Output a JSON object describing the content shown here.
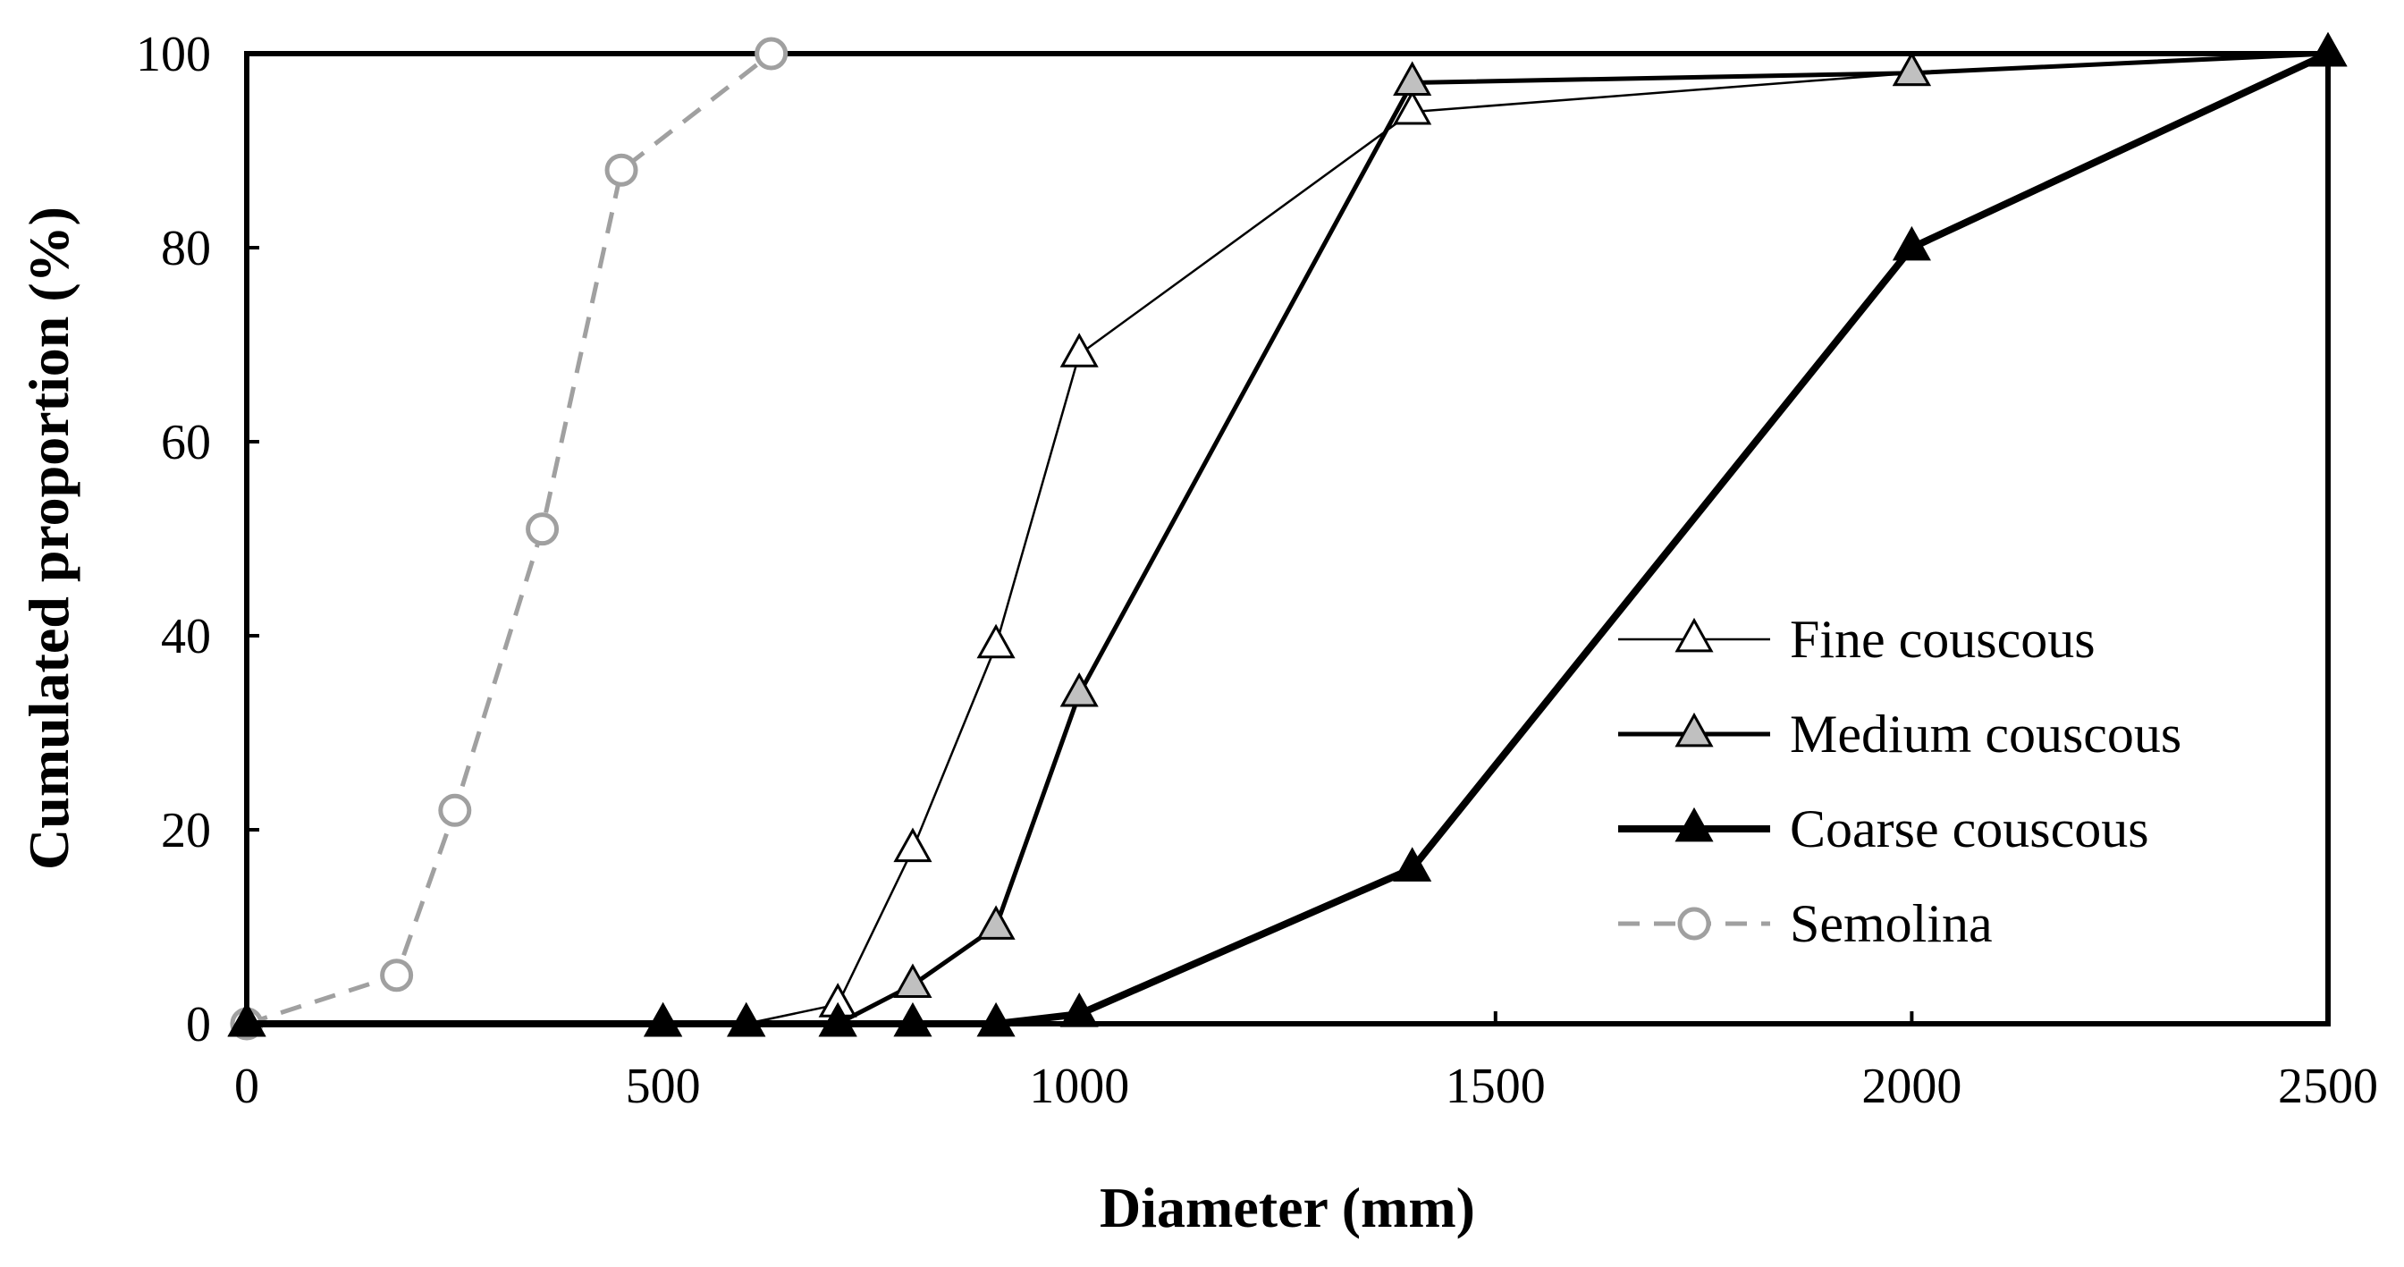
{
  "chart_data": {
    "type": "line",
    "title": "",
    "xlabel": "Diameter (mm)",
    "ylabel": "Cumulated proportion (%)",
    "xlim": [
      0,
      2500
    ],
    "ylim": [
      0,
      100
    ],
    "x_ticks": [
      "0",
      "500",
      "1000",
      "1500",
      "2000",
      "2500"
    ],
    "y_ticks": [
      "0",
      "20",
      "40",
      "60",
      "80",
      "100"
    ],
    "grid": false,
    "legend_position": "right",
    "series": [
      {
        "name": "Fine couscous",
        "marker": "triangle",
        "marker_fill": "#ffffff",
        "line_color": "#000000",
        "line_style": "solid",
        "line_weight": "thin",
        "points": [
          [
            0,
            0
          ],
          [
            500,
            0
          ],
          [
            600,
            0
          ],
          [
            710,
            2
          ],
          [
            800,
            18
          ],
          [
            900,
            39
          ],
          [
            1000,
            69
          ],
          [
            1400,
            94
          ],
          [
            2000,
            98
          ],
          [
            2500,
            100
          ]
        ]
      },
      {
        "name": "Medium couscous",
        "marker": "triangle",
        "marker_fill": "#c0c0c0",
        "line_color": "#000000",
        "line_style": "solid",
        "line_weight": "medium",
        "points": [
          [
            0,
            0
          ],
          [
            500,
            0
          ],
          [
            600,
            0
          ],
          [
            710,
            0
          ],
          [
            800,
            4
          ],
          [
            900,
            10
          ],
          [
            1000,
            34
          ],
          [
            1400,
            97
          ],
          [
            2000,
            98
          ],
          [
            2500,
            100
          ]
        ]
      },
      {
        "name": "Coarse couscous",
        "marker": "triangle",
        "marker_fill": "#000000",
        "line_color": "#000000",
        "line_style": "solid",
        "line_weight": "thick",
        "points": [
          [
            0,
            0
          ],
          [
            500,
            0
          ],
          [
            600,
            0
          ],
          [
            710,
            0
          ],
          [
            800,
            0
          ],
          [
            900,
            0
          ],
          [
            1000,
            1
          ],
          [
            1400,
            16
          ],
          [
            2000,
            80
          ],
          [
            2500,
            100
          ]
        ]
      },
      {
        "name": "Semolina",
        "marker": "circle",
        "marker_fill": "#ffffff",
        "line_color": "#a0a0a0",
        "line_style": "dashed",
        "line_weight": "medium",
        "points": [
          [
            0,
            0
          ],
          [
            180,
            5
          ],
          [
            250,
            22
          ],
          [
            355,
            51
          ],
          [
            450,
            88
          ],
          [
            630,
            100
          ]
        ]
      }
    ]
  }
}
